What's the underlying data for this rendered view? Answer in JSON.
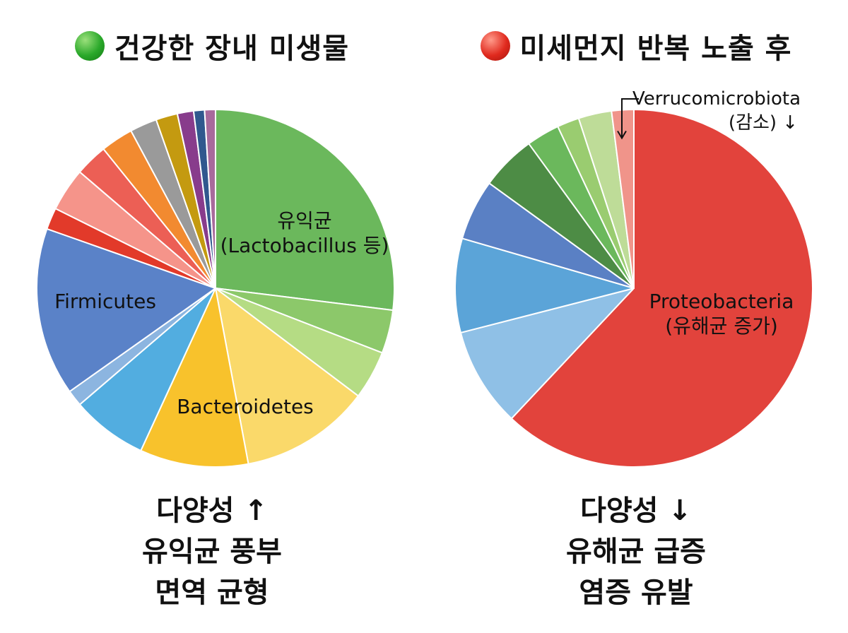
{
  "left": {
    "title": "건강한 장내 미생물",
    "status_color": "#2aa82a",
    "summary": [
      "다양성 ↑",
      "유익균 풍부",
      "면역 균형"
    ]
  },
  "right": {
    "title": "미세먼지 반복 노출 후",
    "status_color": "#e02a1e",
    "summary": [
      "다양성 ↓",
      "유해균 급증",
      "염증 유발"
    ]
  },
  "chart_data": [
    {
      "type": "pie",
      "title": "건강한 장내 미생물",
      "slices": [
        {
          "label": "유익균\n(Lactobacillus 등)",
          "value": 27.5,
          "color": "#6bb85c"
        },
        {
          "label": "",
          "value": 4.0,
          "color": "#8cc86a"
        },
        {
          "label": "",
          "value": 4.5,
          "color": "#b5dc84"
        },
        {
          "label": "",
          "value": 12.0,
          "color": "#fad96a"
        },
        {
          "label": "Bacteroidetes",
          "value": 10.0,
          "color": "#f8c22c"
        },
        {
          "label": "",
          "value": 7.0,
          "color": "#52ade0"
        },
        {
          "label": "",
          "value": 1.5,
          "color": "#8cb5e0"
        },
        {
          "label": "Firmicutes",
          "value": 15.5,
          "color": "#5a82c8"
        },
        {
          "label": "",
          "value": 2.0,
          "color": "#e23a2a"
        },
        {
          "label": "",
          "value": 4.0,
          "color": "#f5948a"
        },
        {
          "label": "",
          "value": 3.0,
          "color": "#ec5f55"
        },
        {
          "label": "",
          "value": 3.0,
          "color": "#f28a30"
        },
        {
          "label": "",
          "value": 2.5,
          "color": "#9a9a9a"
        },
        {
          "label": "",
          "value": 2.0,
          "color": "#c49a10"
        },
        {
          "label": "",
          "value": 1.5,
          "color": "#883c8c"
        },
        {
          "label": "",
          "value": 1.0,
          "color": "#30588e"
        },
        {
          "label": "",
          "value": 1.0,
          "color": "#a86a9c"
        }
      ]
    },
    {
      "type": "pie",
      "title": "미세먼지 반복 노출 후",
      "slices": [
        {
          "label": "Proteobacteria\n(유해균 증가)",
          "value": 62.0,
          "color": "#e2433c"
        },
        {
          "label": "",
          "value": 9.0,
          "color": "#8fc0e6"
        },
        {
          "label": "",
          "value": 8.5,
          "color": "#5ba4d8"
        },
        {
          "label": "",
          "value": 5.5,
          "color": "#5a80c4"
        },
        {
          "label": "",
          "value": 5.0,
          "color": "#4d8c45"
        },
        {
          "label": "",
          "value": 3.0,
          "color": "#6bb85c"
        },
        {
          "label": "",
          "value": 2.0,
          "color": "#9acc70"
        },
        {
          "label": "",
          "value": 3.0,
          "color": "#bedc98"
        },
        {
          "label": "",
          "value": 2.0,
          "color": "#f0948a"
        }
      ],
      "annotation": {
        "text": "Verrucomicrobiota\n(감소) ↓",
        "target_slice": 8
      }
    }
  ]
}
